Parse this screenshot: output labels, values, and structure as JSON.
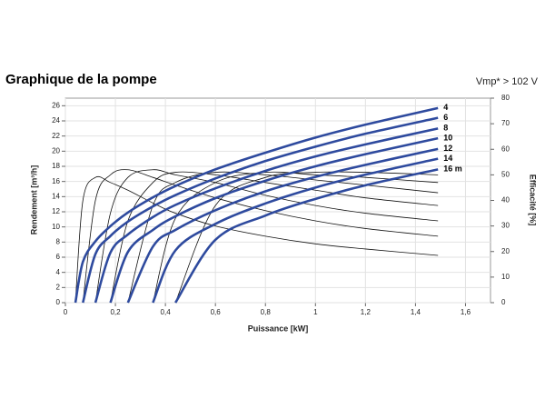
{
  "chart_data": {
    "type": "line",
    "title": "Graphique de la pompe",
    "subtitle": "Vmp* > 102 V",
    "x_label": "Puissance [kW]",
    "y_label": "Rendement [m³/h]",
    "y2_label": "Efficacité [%]",
    "x": [
      0.04,
      0.07,
      0.12,
      0.18,
      0.25,
      0.35,
      0.44,
      0.6,
      0.8,
      1.0,
      1.2,
      1.49
    ],
    "series": [
      {
        "name": "4",
        "color": "#2e4a9e",
        "values": [
          0,
          5.4,
          8.1,
          10.1,
          11.9,
          13.9,
          15.4,
          17.6,
          19.8,
          21.8,
          23.5,
          25.7
        ]
      },
      {
        "name": "6",
        "color": "#2e4a9e",
        "values": [
          null,
          0,
          6.4,
          8.8,
          10.7,
          12.7,
          14.2,
          16.4,
          18.7,
          20.6,
          22.3,
          24.4
        ]
      },
      {
        "name": "8",
        "color": "#2e4a9e",
        "values": [
          null,
          null,
          0,
          6.6,
          9.0,
          11.3,
          12.9,
          15.1,
          17.4,
          19.3,
          20.9,
          23.0
        ]
      },
      {
        "name": "10",
        "color": "#2e4a9e",
        "values": [
          null,
          null,
          null,
          0,
          6.7,
          9.6,
          11.4,
          13.8,
          16.1,
          18.0,
          19.6,
          21.7
        ]
      },
      {
        "name": "12",
        "color": "#2e4a9e",
        "values": [
          null,
          null,
          null,
          null,
          0,
          7.4,
          9.6,
          12.2,
          14.7,
          16.6,
          18.2,
          20.3
        ]
      },
      {
        "name": "14",
        "color": "#2e4a9e",
        "values": [
          null,
          null,
          null,
          null,
          null,
          0,
          6.9,
          10.4,
          13.1,
          15.2,
          16.9,
          19.0
        ]
      },
      {
        "name": "16 m",
        "color": "#2e4a9e",
        "values": [
          null,
          null,
          null,
          null,
          null,
          null,
          0,
          8.3,
          11.5,
          13.7,
          15.5,
          17.6
        ]
      },
      {
        "axis": "y2",
        "color": "#111111",
        "values": [
          0,
          40,
          49,
          47,
          44,
          39,
          35,
          30,
          26,
          23,
          21,
          18.5
        ]
      },
      {
        "axis": "y2",
        "color": "#111111",
        "values": [
          null,
          0,
          40,
          50,
          52,
          49,
          46,
          41,
          36,
          32,
          29,
          26
        ]
      },
      {
        "axis": "y2",
        "color": "#111111",
        "values": [
          null,
          null,
          0,
          35,
          49,
          52,
          50,
          47,
          42,
          38,
          35,
          32
        ]
      },
      {
        "axis": "y2",
        "color": "#111111",
        "values": [
          null,
          null,
          null,
          0,
          32,
          47,
          51,
          50,
          47,
          44,
          41,
          38
        ]
      },
      {
        "axis": "y2",
        "color": "#111111",
        "values": [
          null,
          null,
          null,
          null,
          0,
          38,
          47,
          51,
          50,
          48,
          46,
          43
        ]
      },
      {
        "axis": "y2",
        "color": "#111111",
        "values": [
          null,
          null,
          null,
          null,
          null,
          0,
          33,
          47,
          51,
          50,
          49,
          47
        ]
      },
      {
        "axis": "y2",
        "color": "#111111",
        "values": [
          null,
          null,
          null,
          null,
          null,
          null,
          0,
          38,
          49,
          51,
          51,
          50
        ]
      }
    ],
    "xlim": [
      0,
      1.7
    ],
    "xticks": [
      0,
      {
        "value": 0.2,
        "label": "0,2"
      },
      {
        "value": 0.4,
        "label": "0,4"
      },
      {
        "value": 0.6,
        "label": "0,6"
      },
      {
        "value": 0.8,
        "label": "0,8"
      },
      1,
      {
        "value": 1.2,
        "label": "1,2"
      },
      {
        "value": 1.4,
        "label": "1,4"
      },
      {
        "value": 1.6,
        "label": "1,6"
      }
    ],
    "ylim": [
      0,
      27
    ],
    "yticks": [
      0,
      2,
      4,
      6,
      8,
      10,
      12,
      14,
      16,
      18,
      20,
      22,
      24,
      26
    ],
    "y2lim": [
      0,
      80
    ],
    "y2ticks": [
      0,
      10,
      20,
      30,
      40,
      50,
      60,
      70,
      80
    ],
    "grid": true
  }
}
